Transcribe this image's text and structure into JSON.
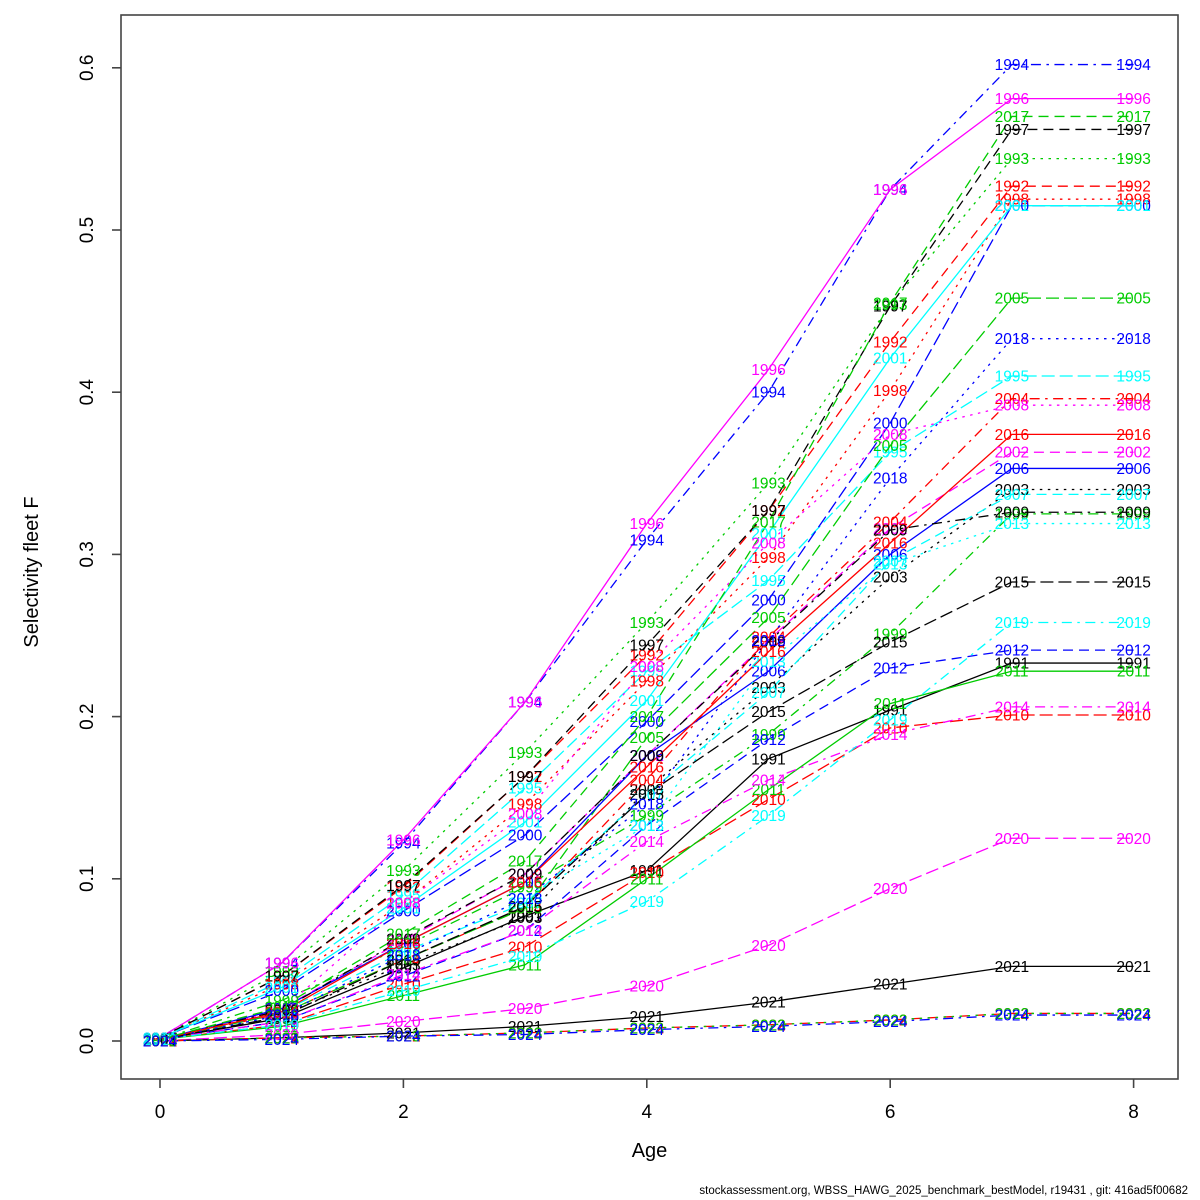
{
  "footer": "stockassessment.org, WBSS_HAWG_2025_benchmark_bestModel, r19431 , git: 416ad5f00682",
  "chart_data": {
    "type": "line",
    "title": "",
    "xlabel": "Age",
    "ylabel": "Selectivity fleet F",
    "x": [
      0,
      1,
      2,
      3,
      4,
      5,
      6,
      7,
      8
    ],
    "xticks": [
      0,
      2,
      4,
      6,
      8
    ],
    "yticks": [
      "0.0",
      "0.1",
      "0.2",
      "0.3",
      "0.4",
      "0.5",
      "0.6"
    ],
    "xlim": [
      -0.3,
      8.35
    ],
    "ylim": [
      -0.023,
      0.632
    ],
    "grid": false,
    "legend_position": "labels-on-points",
    "point_labels": "year at every age, ages 7 and 8 share equal values",
    "palette": {
      "black": "#000000",
      "red": "#ff0000",
      "green": "#00cc00",
      "blue": "#0000ff",
      "cyan": "#00ffff",
      "magenta": "#ff00ff"
    },
    "series": [
      {
        "name": "1991",
        "color": "#000000",
        "linetype": "solid",
        "values": [
          0.001,
          0.014,
          0.045,
          0.077,
          0.105,
          0.174,
          0.204,
          0.233,
          0.233
        ]
      },
      {
        "name": "1992",
        "color": "#ff0000",
        "linetype": "dashed",
        "values": [
          0.002,
          0.04,
          0.095,
          0.163,
          0.238,
          0.327,
          0.431,
          0.527,
          0.527
        ]
      },
      {
        "name": "1993",
        "color": "#00cc00",
        "linetype": "dotted",
        "values": [
          0.002,
          0.043,
          0.105,
          0.178,
          0.258,
          0.344,
          0.454,
          0.544,
          0.544
        ]
      },
      {
        "name": "1994",
        "color": "#0000ff",
        "linetype": "dotdash",
        "values": [
          0.002,
          0.048,
          0.122,
          0.209,
          0.309,
          0.4,
          0.525,
          0.602,
          0.602
        ]
      },
      {
        "name": "1995",
        "color": "#00ffff",
        "linetype": "longdash",
        "values": [
          0.002,
          0.037,
          0.09,
          0.156,
          0.228,
          0.284,
          0.363,
          0.41,
          0.41
        ]
      },
      {
        "name": "1996",
        "color": "#ff00ff",
        "linetype": "solid",
        "values": [
          0.002,
          0.048,
          0.124,
          0.209,
          0.319,
          0.414,
          0.525,
          0.581,
          0.581
        ]
      },
      {
        "name": "1997",
        "color": "#000000",
        "linetype": "dashed",
        "values": [
          0.002,
          0.04,
          0.096,
          0.163,
          0.244,
          0.327,
          0.453,
          0.562,
          0.562
        ]
      },
      {
        "name": "1998",
        "color": "#ff0000",
        "linetype": "dotted",
        "values": [
          0.002,
          0.035,
          0.085,
          0.146,
          0.222,
          0.298,
          0.401,
          0.519,
          0.519
        ]
      },
      {
        "name": "1999",
        "color": "#00cc00",
        "linetype": "dotdash",
        "values": [
          0.001,
          0.025,
          0.058,
          0.095,
          0.139,
          0.189,
          0.251,
          0.325,
          0.325
        ]
      },
      {
        "name": "2000",
        "color": "#0000ff",
        "linetype": "longdash",
        "values": [
          0.002,
          0.031,
          0.08,
          0.127,
          0.197,
          0.272,
          0.381,
          0.515,
          0.515
        ]
      },
      {
        "name": "2001",
        "color": "#00ffff",
        "linetype": "solid",
        "values": [
          0.002,
          0.033,
          0.082,
          0.135,
          0.21,
          0.313,
          0.421,
          0.515,
          0.515
        ]
      },
      {
        "name": "2002",
        "color": "#ff00ff",
        "linetype": "dashed",
        "values": [
          0.001,
          0.02,
          0.062,
          0.103,
          0.176,
          0.247,
          0.316,
          0.363,
          0.363
        ]
      },
      {
        "name": "2003",
        "color": "#000000",
        "linetype": "dotted",
        "values": [
          0.001,
          0.016,
          0.047,
          0.076,
          0.155,
          0.218,
          0.286,
          0.34,
          0.34
        ]
      },
      {
        "name": "2004",
        "color": "#ff0000",
        "linetype": "dotdash",
        "values": [
          0.001,
          0.017,
          0.05,
          0.082,
          0.161,
          0.249,
          0.32,
          0.396,
          0.396
        ]
      },
      {
        "name": "2005",
        "color": "#00cc00",
        "linetype": "longdash",
        "values": [
          0.001,
          0.017,
          0.05,
          0.082,
          0.187,
          0.261,
          0.367,
          0.458,
          0.458
        ]
      },
      {
        "name": "2006",
        "color": "#0000ff",
        "linetype": "solid",
        "values": [
          0.001,
          0.02,
          0.06,
          0.098,
          0.176,
          0.228,
          0.3,
          0.353,
          0.353
        ]
      },
      {
        "name": "2007",
        "color": "#00ffff",
        "linetype": "dashed",
        "values": [
          0.001,
          0.018,
          0.055,
          0.085,
          0.152,
          0.215,
          0.296,
          0.337,
          0.337
        ]
      },
      {
        "name": "2008",
        "color": "#ff00ff",
        "linetype": "dotted",
        "values": [
          0.001,
          0.019,
          0.085,
          0.14,
          0.231,
          0.307,
          0.374,
          0.392,
          0.392
        ]
      },
      {
        "name": "2009",
        "color": "#000000",
        "linetype": "dotdash",
        "values": [
          0.001,
          0.019,
          0.063,
          0.103,
          0.176,
          0.246,
          0.315,
          0.326,
          0.326
        ]
      },
      {
        "name": "2010",
        "color": "#ff0000",
        "linetype": "longdash",
        "values": [
          0.001,
          0.01,
          0.035,
          0.058,
          0.104,
          0.149,
          0.193,
          0.201,
          0.201
        ]
      },
      {
        "name": "2011",
        "color": "#00cc00",
        "linetype": "solid",
        "values": [
          0.001,
          0.009,
          0.028,
          0.047,
          0.1,
          0.155,
          0.208,
          0.228,
          0.228
        ]
      },
      {
        "name": "2012",
        "color": "#0000ff",
        "linetype": "dashed",
        "values": [
          0.001,
          0.012,
          0.04,
          0.068,
          0.133,
          0.186,
          0.23,
          0.241,
          0.241
        ]
      },
      {
        "name": "2013",
        "color": "#00ffff",
        "linetype": "dotted",
        "values": [
          0.001,
          0.016,
          0.053,
          0.088,
          0.133,
          0.234,
          0.294,
          0.319,
          0.319
        ]
      },
      {
        "name": "2014",
        "color": "#ff00ff",
        "linetype": "dotdash",
        "values": [
          0.001,
          0.012,
          0.041,
          0.068,
          0.123,
          0.161,
          0.189,
          0.206,
          0.206
        ]
      },
      {
        "name": "2015",
        "color": "#000000",
        "linetype": "longdash",
        "values": [
          0.001,
          0.015,
          0.05,
          0.083,
          0.152,
          0.203,
          0.246,
          0.283,
          0.283
        ]
      },
      {
        "name": "2016",
        "color": "#ff0000",
        "linetype": "solid",
        "values": [
          0.001,
          0.018,
          0.06,
          0.098,
          0.169,
          0.24,
          0.307,
          0.374,
          0.374
        ]
      },
      {
        "name": "2017",
        "color": "#00cc00",
        "linetype": "dashed",
        "values": [
          0.001,
          0.021,
          0.066,
          0.111,
          0.2,
          0.32,
          0.455,
          0.57,
          0.57
        ]
      },
      {
        "name": "2018",
        "color": "#0000ff",
        "linetype": "dotted",
        "values": [
          0.001,
          0.016,
          0.053,
          0.088,
          0.146,
          0.247,
          0.347,
          0.433,
          0.433
        ]
      },
      {
        "name": "2019",
        "color": "#00ffff",
        "linetype": "dotdash",
        "values": [
          0.001,
          0.01,
          0.031,
          0.052,
          0.086,
          0.139,
          0.198,
          0.258,
          0.258
        ]
      },
      {
        "name": "2020",
        "color": "#ff00ff",
        "linetype": "longdash",
        "values": [
          0.0,
          0.004,
          0.012,
          0.02,
          0.034,
          0.059,
          0.094,
          0.125,
          0.125
        ]
      },
      {
        "name": "2021",
        "color": "#000000",
        "linetype": "solid",
        "values": [
          0.0,
          0.002,
          0.005,
          0.009,
          0.015,
          0.024,
          0.035,
          0.046,
          0.046
        ]
      },
      {
        "name": "2022",
        "color": "#ff0000",
        "linetype": "dashed",
        "values": [
          0.0,
          0.002,
          0.003,
          0.005,
          0.008,
          0.01,
          0.013,
          0.017,
          0.017
        ]
      },
      {
        "name": "2023",
        "color": "#00cc00",
        "linetype": "dotted",
        "values": [
          0.0,
          0.002,
          0.003,
          0.005,
          0.008,
          0.01,
          0.013,
          0.017,
          0.017
        ]
      },
      {
        "name": "2024",
        "color": "#0000ff",
        "linetype": "dotdash",
        "values": [
          0.0,
          0.001,
          0.003,
          0.004,
          0.007,
          0.009,
          0.012,
          0.016,
          0.016
        ]
      }
    ]
  }
}
